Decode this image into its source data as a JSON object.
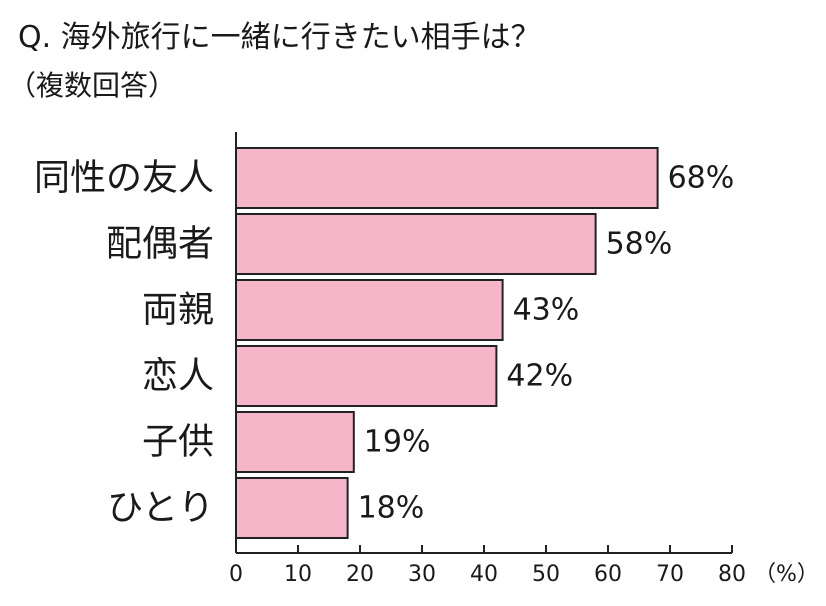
{
  "chart_data": {
    "type": "bar",
    "orientation": "horizontal",
    "title": "Q. 海外旅行に一緒に行きたい相手は？",
    "subtitle": "（複数回答）",
    "categories": [
      "同性の友人",
      "配偶者",
      "両親",
      "恋人",
      "子供",
      "ひとり"
    ],
    "values": [
      68,
      58,
      43,
      42,
      19,
      18
    ],
    "value_labels": [
      "68%",
      "58%",
      "43%",
      "42%",
      "19%",
      "18%"
    ],
    "xlim": [
      0,
      80
    ],
    "x_ticks": [
      "0",
      "10",
      "20",
      "30",
      "40",
      "50",
      "60",
      "70",
      "80"
    ],
    "x_unit": "（%）",
    "grid": false,
    "bar_color": "#f5b6ca",
    "bar_edge_color": "#222222"
  }
}
